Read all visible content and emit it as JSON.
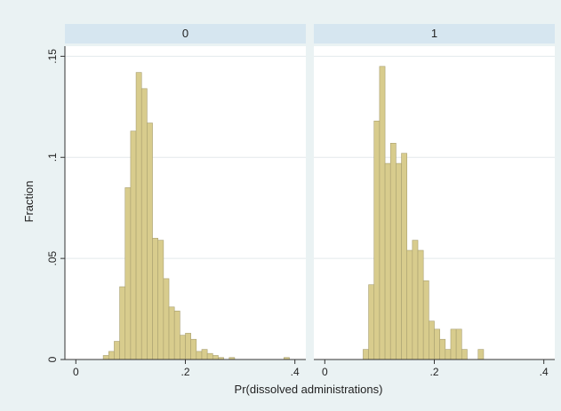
{
  "chart_data": {
    "type": "bar",
    "subtype": "histogram",
    "xlabel": "Pr(dissolved administrations)",
    "ylabel": "Fraction",
    "xlim": [
      -0.02,
      0.42
    ],
    "ylim": [
      0,
      0.155
    ],
    "xticks": [
      0,
      0.2,
      0.4
    ],
    "xtick_labels": [
      "0",
      ".2",
      ".4"
    ],
    "yticks": [
      0,
      0.05,
      0.1,
      0.15
    ],
    "ytick_labels": [
      "0",
      ".05",
      ".1",
      ".15"
    ],
    "grid": true,
    "bin_width": 0.01,
    "colors": {
      "bar_fill": "#d8cc8d",
      "bar_stroke": "#a9a070",
      "panel_bg": "#ffffff",
      "strip_bg": "#d6e6f0",
      "figure_bg": "#eaf2f3",
      "grid": "#e3e9ec"
    },
    "panels": [
      {
        "label": "0",
        "bins": [
          {
            "x": 0.05,
            "y": 0.002
          },
          {
            "x": 0.06,
            "y": 0.004
          },
          {
            "x": 0.07,
            "y": 0.009
          },
          {
            "x": 0.08,
            "y": 0.036
          },
          {
            "x": 0.09,
            "y": 0.085
          },
          {
            "x": 0.1,
            "y": 0.113
          },
          {
            "x": 0.11,
            "y": 0.142
          },
          {
            "x": 0.12,
            "y": 0.134
          },
          {
            "x": 0.13,
            "y": 0.117
          },
          {
            "x": 0.14,
            "y": 0.06
          },
          {
            "x": 0.15,
            "y": 0.059
          },
          {
            "x": 0.16,
            "y": 0.04
          },
          {
            "x": 0.17,
            "y": 0.026
          },
          {
            "x": 0.18,
            "y": 0.024
          },
          {
            "x": 0.19,
            "y": 0.012
          },
          {
            "x": 0.2,
            "y": 0.013
          },
          {
            "x": 0.21,
            "y": 0.01
          },
          {
            "x": 0.22,
            "y": 0.004
          },
          {
            "x": 0.23,
            "y": 0.005
          },
          {
            "x": 0.24,
            "y": 0.003
          },
          {
            "x": 0.25,
            "y": 0.002
          },
          {
            "x": 0.26,
            "y": 0.001
          },
          {
            "x": 0.28,
            "y": 0.001
          },
          {
            "x": 0.38,
            "y": 0.001
          }
        ]
      },
      {
        "label": "1",
        "bins": [
          {
            "x": 0.07,
            "y": 0.005
          },
          {
            "x": 0.08,
            "y": 0.037
          },
          {
            "x": 0.09,
            "y": 0.118
          },
          {
            "x": 0.1,
            "y": 0.145
          },
          {
            "x": 0.11,
            "y": 0.097
          },
          {
            "x": 0.12,
            "y": 0.107
          },
          {
            "x": 0.13,
            "y": 0.097
          },
          {
            "x": 0.14,
            "y": 0.102
          },
          {
            "x": 0.15,
            "y": 0.054
          },
          {
            "x": 0.16,
            "y": 0.059
          },
          {
            "x": 0.17,
            "y": 0.054
          },
          {
            "x": 0.18,
            "y": 0.039
          },
          {
            "x": 0.19,
            "y": 0.019
          },
          {
            "x": 0.2,
            "y": 0.015
          },
          {
            "x": 0.21,
            "y": 0.01
          },
          {
            "x": 0.22,
            "y": 0.005
          },
          {
            "x": 0.23,
            "y": 0.015
          },
          {
            "x": 0.24,
            "y": 0.015
          },
          {
            "x": 0.25,
            "y": 0.005
          },
          {
            "x": 0.28,
            "y": 0.005
          }
        ]
      }
    ]
  }
}
